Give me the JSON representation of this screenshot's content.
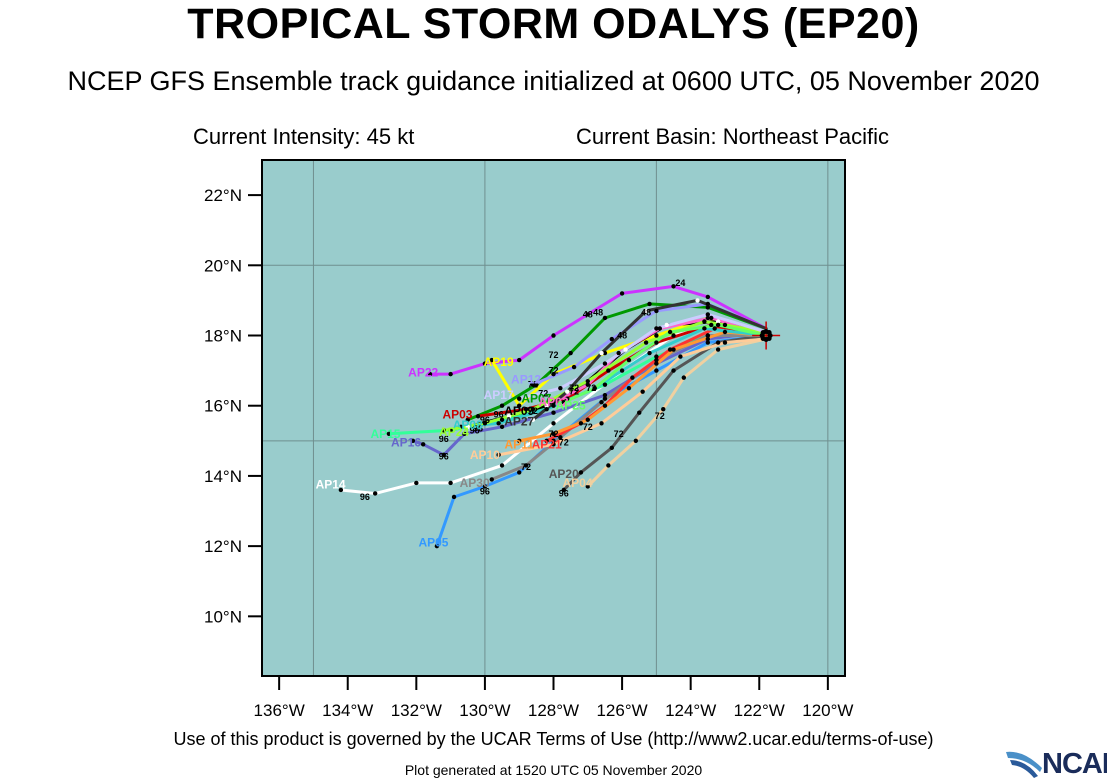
{
  "header": {
    "title": "TROPICAL STORM ODALYS (EP20)",
    "subtitle": "NCEP GFS Ensemble track guidance initialized at 0600 UTC, 05 November 2020",
    "intensity": "Current Intensity: 45 kt",
    "basin": "Current Basin: Northeast Pacific"
  },
  "footer": {
    "terms": "Use of this product is governed by the UCAR Terms of Use (http://www2.ucar.edu/terms-of-use)",
    "generated": "Plot generated at 1520 UTC   05 November 2020",
    "logo_text": "NCAR"
  },
  "chart_data": {
    "type": "map-track",
    "xlim": [
      -136.5,
      -119.5
    ],
    "ylim": [
      8.3,
      23.0
    ],
    "x_ticks": [
      -136,
      -134,
      -132,
      -130,
      -128,
      -126,
      -124,
      -122,
      -120
    ],
    "x_tick_labels": [
      "136°W",
      "134°W",
      "132°W",
      "130°W",
      "128°W",
      "126°W",
      "124°W",
      "122°W",
      "120°W"
    ],
    "y_ticks": [
      10,
      12,
      14,
      16,
      18,
      20,
      22
    ],
    "y_tick_labels": [
      "10°N",
      "12°N",
      "14°N",
      "16°N",
      "18°N",
      "20°N",
      "22°N"
    ],
    "grid_lon": [
      -135,
      -130,
      -125,
      -120
    ],
    "grid_lat": [
      15,
      20
    ],
    "ocean_color": "#99cccc",
    "start": {
      "lon": -121.8,
      "lat": 18.0
    },
    "tracks": [
      {
        "name": "AP14",
        "color": "#ffffff",
        "label_lon": -134.5,
        "label_lat": 13.75,
        "points": [
          [
            -121.8,
            18.1
          ],
          [
            -123.0,
            18.3
          ],
          [
            -124.5,
            18.0
          ],
          [
            -126.0,
            17.0
          ],
          [
            -128.0,
            15.5
          ],
          [
            -129.5,
            14.3
          ],
          [
            -131.0,
            13.8
          ],
          [
            -132.0,
            13.8
          ],
          [
            -133.2,
            13.5
          ],
          [
            -134.2,
            13.6
          ]
        ],
        "hours": [
          [
            "96",
            -133.5,
            13.4
          ]
        ]
      },
      {
        "name": "AP05",
        "color": "#3399ff",
        "label_lon": -131.5,
        "label_lat": 12.1,
        "points": [
          [
            -121.8,
            18.0
          ],
          [
            -123.5,
            17.8
          ],
          [
            -125.0,
            17.0
          ],
          [
            -126.5,
            16.2
          ],
          [
            -128.0,
            15.0
          ],
          [
            -129.0,
            14.1
          ],
          [
            -130.0,
            13.7
          ],
          [
            -130.9,
            13.4
          ],
          [
            -131.4,
            12.0
          ]
        ],
        "hours": [
          [
            "96",
            -130.0,
            13.55
          ]
        ]
      },
      {
        "name": "AP22",
        "color": "#cc33ff",
        "label_lon": -131.8,
        "label_lat": 16.95,
        "points": [
          [
            -121.8,
            18.2
          ],
          [
            -123.5,
            19.1
          ],
          [
            -124.5,
            19.4
          ],
          [
            -126.0,
            19.2
          ],
          [
            -127.0,
            18.6
          ],
          [
            -128.0,
            18.0
          ],
          [
            -129.0,
            17.3
          ],
          [
            -130.0,
            17.2
          ],
          [
            -131.0,
            16.9
          ],
          [
            -131.6,
            16.9
          ]
        ],
        "hours": [
          [
            "24",
            -124.3,
            19.5
          ],
          [
            "48",
            -127.0,
            18.6
          ],
          [
            "72",
            -128.0,
            17.45
          ]
        ]
      },
      {
        "name": "AP19",
        "color": "#ffff00",
        "label_lon": -129.6,
        "label_lat": 17.25,
        "points": [
          [
            -121.8,
            18.1
          ],
          [
            -123.5,
            18.5
          ],
          [
            -125.0,
            18.0
          ],
          [
            -126.5,
            17.5
          ],
          [
            -128.0,
            16.9
          ],
          [
            -129.0,
            16.0
          ],
          [
            -129.8,
            17.3
          ]
        ],
        "hours": [
          [
            "72",
            -128.0,
            17.0
          ]
        ]
      },
      {
        "name": "AP15",
        "color": "#33ff99",
        "label_lon": -132.9,
        "label_lat": 15.2,
        "points": [
          [
            -121.8,
            18.0
          ],
          [
            -123.5,
            18.0
          ],
          [
            -125.0,
            17.4
          ],
          [
            -126.5,
            16.6
          ],
          [
            -128.0,
            16.0
          ],
          [
            -129.5,
            15.6
          ],
          [
            -131.0,
            15.3
          ],
          [
            -132.8,
            15.2
          ]
        ],
        "hours": [
          [
            "96",
            -131.2,
            15.05
          ]
        ]
      },
      {
        "name": "AP16",
        "color": "#6666cc",
        "label_lon": -132.3,
        "label_lat": 14.95,
        "points": [
          [
            -121.8,
            18.1
          ],
          [
            -123.5,
            17.9
          ],
          [
            -125.0,
            17.2
          ],
          [
            -126.5,
            16.3
          ],
          [
            -128.0,
            15.8
          ],
          [
            -129.5,
            15.4
          ],
          [
            -130.6,
            15.2
          ],
          [
            -131.2,
            14.6
          ],
          [
            -131.8,
            14.9
          ],
          [
            -132.1,
            15.0
          ]
        ],
        "hours": [
          [
            "96",
            -131.2,
            14.55
          ]
        ]
      },
      {
        "name": "AP20",
        "color": "#555555",
        "label_lon": -127.7,
        "label_lat": 14.05,
        "points": [
          [
            -121.8,
            18.0
          ],
          [
            -123.2,
            17.8
          ],
          [
            -124.5,
            17.0
          ],
          [
            -125.5,
            15.8
          ],
          [
            -126.3,
            14.8
          ],
          [
            -127.2,
            14.1
          ],
          [
            -127.7,
            13.6
          ]
        ],
        "hours": [
          [
            "72",
            -126.1,
            15.2
          ],
          [
            "96",
            -127.7,
            13.5
          ]
        ]
      },
      {
        "name": "AP04",
        "color": "#f0d0a0",
        "label_lon": -127.3,
        "label_lat": 13.8,
        "points": [
          [
            -121.8,
            17.9
          ],
          [
            -123.2,
            17.6
          ],
          [
            -124.2,
            16.8
          ],
          [
            -124.8,
            15.9
          ],
          [
            -125.6,
            15.0
          ],
          [
            -126.4,
            14.3
          ],
          [
            -127.0,
            13.7
          ]
        ],
        "hours": [
          [
            "72",
            -124.9,
            15.7
          ]
        ]
      },
      {
        "name": "AP30",
        "color": "#888888",
        "label_lon": -130.3,
        "label_lat": 13.8,
        "points": [
          [
            -121.8,
            18.0
          ],
          [
            -123.5,
            18.0
          ],
          [
            -125.0,
            17.3
          ],
          [
            -126.6,
            16.1
          ],
          [
            -127.8,
            15.1
          ],
          [
            -128.8,
            14.3
          ],
          [
            -129.8,
            13.9
          ]
        ],
        "hours": [
          [
            "72",
            -128.8,
            14.25
          ]
        ]
      },
      {
        "name": "AP07",
        "color": "#009900",
        "label_lon": -128.5,
        "label_lat": 16.2,
        "points": [
          [
            -121.8,
            18.2
          ],
          [
            -123.5,
            18.8
          ],
          [
            -125.2,
            18.9
          ],
          [
            -126.5,
            18.5
          ],
          [
            -127.5,
            17.5
          ],
          [
            -128.5,
            16.6
          ],
          [
            -129.5,
            16.0
          ],
          [
            -130.5,
            15.6
          ]
        ],
        "hours": [
          [
            "48",
            -126.7,
            18.65
          ],
          [
            "72",
            -128.6,
            16.6
          ],
          [
            "96",
            -130.0,
            15.6
          ]
        ]
      },
      {
        "name": "AP21",
        "color": "#ff3333",
        "label_lon": -128.2,
        "label_lat": 14.9,
        "points": [
          [
            -121.8,
            18.1
          ],
          [
            -123.3,
            18.2
          ],
          [
            -124.6,
            17.6
          ],
          [
            -125.7,
            16.8
          ],
          [
            -126.5,
            16.0
          ],
          [
            -127.2,
            15.5
          ],
          [
            -128.2,
            15.0
          ]
        ],
        "hours": [
          [
            "72",
            -127.0,
            15.4
          ]
        ]
      },
      {
        "name": "AP03",
        "color": "#cc0000",
        "label_lon": -130.8,
        "label_lat": 15.75,
        "points": [
          [
            -121.8,
            18.0
          ],
          [
            -123.4,
            18.3
          ],
          [
            -125.0,
            17.8
          ],
          [
            -126.4,
            17.0
          ],
          [
            -127.6,
            16.2
          ],
          [
            -128.8,
            15.9
          ],
          [
            -130.2,
            15.7
          ]
        ],
        "hours": [
          [
            "96",
            -129.6,
            15.75
          ]
        ]
      },
      {
        "name": "AP11",
        "color": "#ff9933",
        "label_lon": -129.0,
        "label_lat": 14.9,
        "points": [
          [
            -121.8,
            18.0
          ],
          [
            -123.0,
            18.1
          ],
          [
            -124.5,
            17.6
          ],
          [
            -125.8,
            16.5
          ],
          [
            -127.0,
            15.6
          ],
          [
            -128.0,
            15.2
          ],
          [
            -129.0,
            15.0
          ]
        ],
        "hours": [
          [
            "72",
            -128.0,
            15.2
          ]
        ]
      },
      {
        "name": "AP09",
        "color": "#000000",
        "label_lon": -129.0,
        "label_lat": 15.85,
        "points": [
          [
            -121.8,
            18.1
          ],
          [
            -123.2,
            18.4
          ],
          [
            -124.7,
            18.3
          ],
          [
            -125.9,
            17.6
          ],
          [
            -127.0,
            16.7
          ],
          [
            -128.2,
            16.0
          ],
          [
            -129.3,
            15.7
          ],
          [
            -130.5,
            15.4
          ]
        ],
        "hours": [
          [
            "96",
            -130.3,
            15.3
          ]
        ]
      },
      {
        "name": "AP02",
        "color": "#ff66cc",
        "label_lon": -128.0,
        "label_lat": 16.1,
        "points": [
          [
            -121.8,
            18.0
          ],
          [
            -123.4,
            18.5
          ],
          [
            -124.9,
            18.2
          ],
          [
            -126.1,
            17.5
          ],
          [
            -127.0,
            16.6
          ],
          [
            -128.0,
            16.1
          ]
        ],
        "hours": [
          [
            "72",
            -127.4,
            16.4
          ]
        ]
      },
      {
        "name": "AP08",
        "color": "#33cccc",
        "label_lon": -130.5,
        "label_lat": 15.45,
        "points": [
          [
            -121.8,
            18.0
          ],
          [
            -123.6,
            18.2
          ],
          [
            -125.2,
            17.5
          ],
          [
            -126.8,
            16.5
          ],
          [
            -128.2,
            15.9
          ],
          [
            -129.6,
            15.5
          ],
          [
            -130.7,
            15.4
          ]
        ],
        "hours": [
          [
            "96",
            -130.2,
            15.35
          ]
        ]
      },
      {
        "name": "AP24",
        "color": "#99ff33",
        "label_lon": -130.9,
        "label_lat": 15.25,
        "points": [
          [
            -121.8,
            18.1
          ],
          [
            -123.6,
            18.4
          ],
          [
            -125.3,
            17.8
          ],
          [
            -127.0,
            16.7
          ],
          [
            -128.6,
            15.9
          ],
          [
            -130.0,
            15.5
          ],
          [
            -131.2,
            15.3
          ]
        ],
        "hours": [
          [
            "72",
            -128.6,
            15.85
          ]
        ]
      },
      {
        "name": "AP12",
        "color": "#9999ff",
        "label_lon": -128.8,
        "label_lat": 16.75,
        "points": [
          [
            -121.8,
            18.2
          ],
          [
            -123.5,
            18.9
          ],
          [
            -125.0,
            18.7
          ],
          [
            -126.3,
            17.9
          ],
          [
            -127.4,
            17.1
          ],
          [
            -128.6,
            16.6
          ]
        ],
        "hours": [
          [
            "48",
            -126.0,
            18.0
          ]
        ]
      },
      {
        "name": "AP17",
        "color": "#ccccff",
        "label_lon": -129.6,
        "label_lat": 16.3,
        "points": [
          [
            -121.8,
            18.1
          ],
          [
            -123.5,
            18.6
          ],
          [
            -125.0,
            18.2
          ],
          [
            -126.5,
            17.2
          ],
          [
            -127.8,
            16.5
          ],
          [
            -129.0,
            16.2
          ]
        ],
        "hours": [
          [
            "72",
            -128.3,
            16.35
          ]
        ]
      },
      {
        "name": "AP27",
        "color": "#333333",
        "label_lon": -129.0,
        "label_lat": 15.55,
        "points": [
          [
            -121.8,
            18.2
          ],
          [
            -123.8,
            19.0
          ],
          [
            -125.3,
            18.7
          ],
          [
            -126.6,
            17.5
          ],
          [
            -127.6,
            16.4
          ],
          [
            -128.6,
            15.6
          ]
        ],
        "hours": [
          [
            "48",
            -125.3,
            18.65
          ],
          [
            "72",
            -127.4,
            16.5
          ]
        ]
      },
      {
        "name": "AP25",
        "color": "#66ff66",
        "label_lon": -127.5,
        "label_lat": 16.0,
        "points": [
          [
            -121.8,
            18.0
          ],
          [
            -123.2,
            18.3
          ],
          [
            -124.6,
            18.1
          ],
          [
            -125.8,
            17.3
          ],
          [
            -126.8,
            16.5
          ],
          [
            -127.7,
            16.1
          ]
        ],
        "hours": [
          [
            "72",
            -126.9,
            16.5
          ]
        ]
      },
      {
        "name": "AP10",
        "color": "#ffcc99",
        "label_lon": -130.0,
        "label_lat": 14.6,
        "points": [
          [
            -121.8,
            17.9
          ],
          [
            -123.0,
            17.8
          ],
          [
            -124.3,
            17.4
          ],
          [
            -125.4,
            16.4
          ],
          [
            -126.6,
            15.5
          ],
          [
            -128.0,
            14.9
          ],
          [
            -129.6,
            14.6
          ]
        ],
        "hours": [
          [
            "72",
            -127.7,
            14.95
          ]
        ]
      }
    ]
  }
}
